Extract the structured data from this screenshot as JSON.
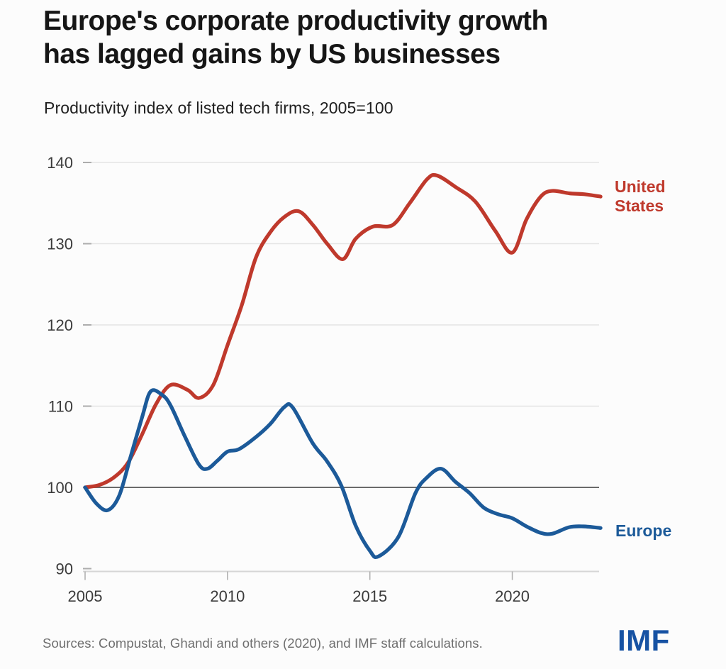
{
  "header": {
    "title": "Europe's corporate productivity growth has lagged gains by US businesses",
    "title_lines": [
      "Europe's corporate productivity growth",
      "has lagged gains by US businesses"
    ],
    "subtitle": "Productivity index of listed tech firms, 2005=100"
  },
  "chart_data": {
    "type": "line",
    "title": "Europe's corporate productivity growth has lagged gains by US businesses",
    "subtitle": "Productivity index of listed tech firms, 2005=100",
    "xlabel": "",
    "ylabel": "",
    "xlim": [
      2005,
      2023.1
    ],
    "ylim": [
      90,
      140
    ],
    "xticks": [
      2005,
      2010,
      2015,
      2020
    ],
    "yticks": [
      90,
      100,
      110,
      120,
      130,
      140
    ],
    "baseline_value": 100,
    "grid": "horizontal-light",
    "legend_position": "right-of-line-ends",
    "series": [
      {
        "name": "United States",
        "color": "#bf392c",
        "x": [
          2005,
          2005.5,
          2006,
          2006.5,
          2007,
          2007.5,
          2008,
          2008.6,
          2009,
          2009.5,
          2010,
          2010.5,
          2011,
          2011.5,
          2012,
          2012.5,
          2013,
          2013.5,
          2014.05,
          2014.5,
          2015.1,
          2015.8,
          2016.4,
          2017,
          2017.35,
          2018,
          2018.7,
          2019.4,
          2020,
          2020.5,
          2021,
          2021.4,
          2022,
          2022.5,
          2023.1
        ],
        "values": [
          100,
          100.3,
          101.2,
          103,
          106.5,
          110.3,
          112.6,
          112,
          111,
          112.6,
          117.5,
          122.4,
          128.3,
          131.4,
          133.3,
          134,
          132.3,
          130,
          128.1,
          130.6,
          132.1,
          132.3,
          135,
          137.9,
          138.4,
          137,
          135.2,
          131.6,
          128.9,
          133,
          135.8,
          136.5,
          136.2,
          136.1,
          135.8
        ]
      },
      {
        "name": "Europe",
        "color": "#1c5a99",
        "x": [
          2005,
          2005.4,
          2005.8,
          2006.2,
          2006.6,
          2007,
          2007.3,
          2007.7,
          2008,
          2008.5,
          2009,
          2009.3,
          2009.65,
          2010,
          2010.4,
          2011,
          2011.5,
          2012,
          2012.3,
          2013,
          2013.5,
          2014,
          2014.5,
          2015,
          2015.3,
          2016,
          2016.6,
          2017,
          2017.5,
          2018,
          2018.5,
          2019,
          2019.5,
          2020,
          2020.5,
          2021,
          2021.4,
          2022,
          2022.5,
          2023.1
        ],
        "values": [
          100,
          98,
          97.2,
          99,
          103.8,
          108.6,
          111.8,
          111.4,
          110.1,
          106.3,
          102.8,
          102.3,
          103.3,
          104.4,
          104.7,
          106.2,
          107.8,
          109.9,
          109.8,
          105.4,
          103.2,
          100.2,
          95.3,
          92.2,
          91.5,
          93.9,
          99.3,
          101.2,
          102.3,
          100.7,
          99.3,
          97.5,
          96.7,
          96.2,
          95.2,
          94.4,
          94.3,
          95.1,
          95.2,
          95
        ]
      }
    ]
  },
  "footer": {
    "source": "Sources: Compustat, Ghandi and others (2020), and IMF staff calculations.",
    "logo": "IMF"
  },
  "colors": {
    "us": "#bf392c",
    "europe": "#1c5a99",
    "grid": "#e4e4e4",
    "baseline": "#6a6a6a",
    "axis": "#d6d6d6",
    "tick": "#adadad",
    "tick_label": "#3b3b3b",
    "title": "#161616",
    "source": "#6e6e6e",
    "imf_logo": "#1652a3"
  }
}
